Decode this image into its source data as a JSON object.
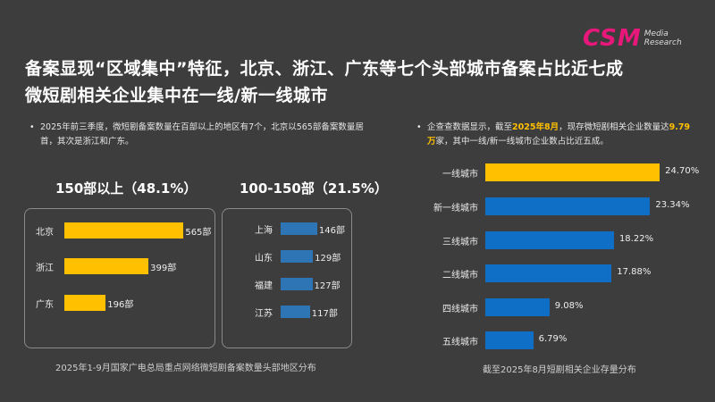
{
  "title": {
    "line1": "备案显现“区域集中”特征，北京、浙江、广东等七个头部城市备案占比近七成",
    "line2": "微短剧相关企业集中在一线/新一线城市"
  },
  "logo": {
    "text": "CSM",
    "sub1": "Media",
    "sub2": "Research"
  },
  "left": {
    "bullet": "2025年前三季度，微短剧备案数量在百部以上的地区有7个，北京以565部备案数量居首，其次是浙江和广东。",
    "caption": "2025年1-9月国家广电总局重点网络微短剧备案数量头部地区分布"
  },
  "right": {
    "bullet_a": "企查查数据显示，截至",
    "bullet_hl1": "2025年8月",
    "bullet_b": "，现存微短剧相关企业数量达",
    "bullet_hl2": "9.79万",
    "bullet_c": "家，其中一线/新一线城市企业数占比近五成。",
    "caption": "截至2025年8月短剧相关企业存量分布"
  },
  "colors": {
    "yellow": "#ffc000",
    "blue": "#1f6fc0",
    "bg": "#3d3d3d"
  },
  "chart_data": [
    {
      "type": "bar",
      "title": "150部以上（48.1%）",
      "orientation": "horizontal",
      "categories": [
        "北京",
        "浙江",
        "广东"
      ],
      "values": [
        565,
        399,
        196
      ],
      "labels": [
        "565部",
        "399部",
        "196部"
      ],
      "color": "#ffc000"
    },
    {
      "type": "bar",
      "title": "100-150部（21.5%）",
      "orientation": "horizontal",
      "categories": [
        "上海",
        "山东",
        "福建",
        "江苏"
      ],
      "values": [
        146,
        129,
        127,
        117
      ],
      "labels": [
        "146部",
        "129部",
        "127部",
        "117部"
      ],
      "color": "#2e75b6"
    },
    {
      "type": "bar",
      "title": "截至2025年8月短剧相关企业存量分布",
      "orientation": "horizontal",
      "categories": [
        "一线城市",
        "新一线城市",
        "三线城市",
        "二线城市",
        "四线城市",
        "五线城市"
      ],
      "values": [
        24.7,
        23.34,
        18.22,
        17.88,
        9.08,
        6.79
      ],
      "labels": [
        "24.70%",
        "23.34%",
        "18.22%",
        "17.88%",
        "9.08%",
        "6.79%"
      ],
      "colors": [
        "#ffc000",
        "#0f6fc6",
        "#0f6fc6",
        "#0f6fc6",
        "#0f6fc6",
        "#0f6fc6"
      ]
    }
  ]
}
